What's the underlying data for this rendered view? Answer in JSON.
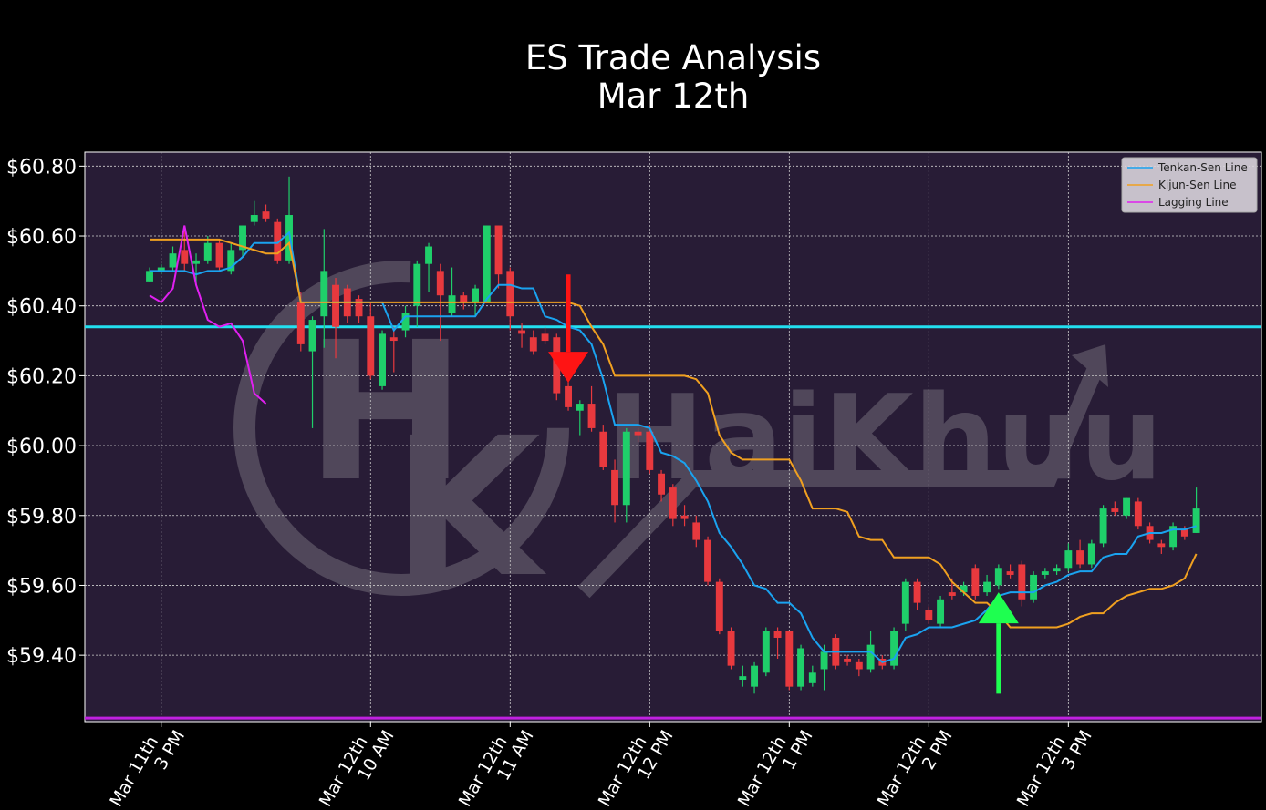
{
  "chart_data": {
    "type": "candlestick",
    "title": "ES Trade Analysis",
    "subtitle": "Mar 12th",
    "x": [
      0,
      1,
      2,
      3,
      4,
      5,
      6,
      7,
      8,
      9,
      10,
      11,
      12,
      13,
      14,
      15,
      16,
      17,
      18,
      19,
      20,
      21,
      22,
      23,
      24,
      25,
      26,
      27,
      28,
      29,
      30,
      31,
      32,
      33,
      34,
      35,
      36,
      37,
      38,
      39,
      40,
      41,
      42,
      43,
      44,
      45,
      46,
      47,
      48,
      49,
      50,
      51,
      52,
      53,
      54,
      55,
      56,
      57,
      58,
      59,
      60,
      61,
      62,
      63,
      64,
      65,
      66,
      67,
      68,
      69,
      70,
      71,
      72,
      73,
      74,
      75,
      76,
      77,
      78,
      79,
      80,
      81,
      82,
      83,
      84,
      85,
      86,
      87,
      88,
      89,
      90
    ],
    "open": [
      60.47,
      60.5,
      60.51,
      60.56,
      60.52,
      60.53,
      60.58,
      60.5,
      60.56,
      60.64,
      60.67,
      60.64,
      60.53,
      60.41,
      60.27,
      60.37,
      60.46,
      60.45,
      60.42,
      60.37,
      60.17,
      60.31,
      60.33,
      60.4,
      60.52,
      60.5,
      60.38,
      60.43,
      60.41,
      60.41,
      60.63,
      60.5,
      60.33,
      60.31,
      60.32,
      60.31,
      60.17,
      60.1,
      60.12,
      60.04,
      59.93,
      59.83,
      60.04,
      60.04,
      59.92,
      59.88,
      59.8,
      59.78,
      59.73,
      59.61,
      59.47,
      59.33,
      59.31,
      59.35,
      59.47,
      59.47,
      59.31,
      59.32,
      59.36,
      59.45,
      59.39,
      59.38,
      59.36,
      59.39,
      59.37,
      59.49,
      59.61,
      59.53,
      59.49,
      59.58,
      59.58,
      59.65,
      59.58,
      59.6,
      59.64,
      59.66,
      59.56,
      59.63,
      59.64,
      59.65,
      59.7,
      59.66,
      59.72,
      59.82,
      59.8,
      59.84,
      59.77,
      59.72,
      59.71,
      59.76,
      59.75
    ],
    "high": [
      60.51,
      60.52,
      60.57,
      60.63,
      60.55,
      60.6,
      60.59,
      60.58,
      60.63,
      60.7,
      60.69,
      60.65,
      60.77,
      60.44,
      60.37,
      60.62,
      60.48,
      60.46,
      60.43,
      60.41,
      60.33,
      60.34,
      60.4,
      60.53,
      60.58,
      60.52,
      60.51,
      60.44,
      60.46,
      60.63,
      60.63,
      60.51,
      60.35,
      60.33,
      60.34,
      60.32,
      60.24,
      60.13,
      60.17,
      60.06,
      59.96,
      60.05,
      60.05,
      60.06,
      59.93,
      59.89,
      59.83,
      59.8,
      59.74,
      59.62,
      59.48,
      59.37,
      59.38,
      59.48,
      59.48,
      59.47,
      59.43,
      59.37,
      59.43,
      59.46,
      59.4,
      59.39,
      59.47,
      59.4,
      59.48,
      59.62,
      59.62,
      59.54,
      59.57,
      59.62,
      59.61,
      59.66,
      59.63,
      59.66,
      59.66,
      59.67,
      59.64,
      59.65,
      59.66,
      59.72,
      59.73,
      59.73,
      59.83,
      59.84,
      59.85,
      59.85,
      59.78,
      59.73,
      59.78,
      59.77,
      59.88
    ],
    "low": [
      60.47,
      60.49,
      60.5,
      60.5,
      60.46,
      60.52,
      60.5,
      60.49,
      60.54,
      60.63,
      60.64,
      60.52,
      60.52,
      60.27,
      60.05,
      60.28,
      60.25,
      60.35,
      60.35,
      60.19,
      60.16,
      60.21,
      60.31,
      60.34,
      60.44,
      60.3,
      60.37,
      60.39,
      60.37,
      60.41,
      60.45,
      60.33,
      60.28,
      60.26,
      60.29,
      60.13,
      60.1,
      60.03,
      60.04,
      59.93,
      59.78,
      59.78,
      60.01,
      59.92,
      59.84,
      59.77,
      59.77,
      59.71,
      59.6,
      59.46,
      59.36,
      59.31,
      59.29,
      59.34,
      59.39,
      59.3,
      59.3,
      59.31,
      59.3,
      59.36,
      59.37,
      59.34,
      59.35,
      59.36,
      59.36,
      59.47,
      59.53,
      59.49,
      59.48,
      59.56,
      59.57,
      59.56,
      59.57,
      59.59,
      59.62,
      59.54,
      59.55,
      59.62,
      59.63,
      59.64,
      59.65,
      59.65,
      59.71,
      59.8,
      59.79,
      59.76,
      59.72,
      59.69,
      59.7,
      59.73,
      59.75
    ],
    "close": [
      60.5,
      60.51,
      60.55,
      60.52,
      60.53,
      60.58,
      60.51,
      60.56,
      60.63,
      60.66,
      60.65,
      60.53,
      60.66,
      60.29,
      60.36,
      60.5,
      60.34,
      60.37,
      60.37,
      60.2,
      60.32,
      60.3,
      60.38,
      60.52,
      60.57,
      60.43,
      60.43,
      60.41,
      60.45,
      60.63,
      60.49,
      60.37,
      60.32,
      60.27,
      60.3,
      60.15,
      60.11,
      60.12,
      60.05,
      59.94,
      59.83,
      60.04,
      60.03,
      59.93,
      59.86,
      59.79,
      59.79,
      59.73,
      59.61,
      59.47,
      59.37,
      59.34,
      59.37,
      59.47,
      59.45,
      59.31,
      59.42,
      59.35,
      59.41,
      59.37,
      59.38,
      59.36,
      59.43,
      59.37,
      59.47,
      59.61,
      59.55,
      59.5,
      59.56,
      59.57,
      59.6,
      59.57,
      59.61,
      59.65,
      59.63,
      59.56,
      59.63,
      59.64,
      59.65,
      59.7,
      59.66,
      59.72,
      59.82,
      59.81,
      59.85,
      59.77,
      59.73,
      59.71,
      59.77,
      59.74,
      59.82
    ],
    "up_color": "#1fcf6a",
    "down_color": "#e8393e",
    "series": [
      {
        "name": "Tenkan-Sen Line",
        "color": "#1aa3f0",
        "values": [
          60.5,
          60.5,
          60.5,
          60.5,
          60.49,
          60.5,
          60.5,
          60.51,
          60.54,
          60.58,
          60.58,
          60.58,
          60.61,
          60.41,
          60.41,
          60.41,
          60.41,
          60.41,
          60.41,
          60.41,
          60.41,
          60.33,
          60.37,
          60.37,
          60.37,
          60.37,
          60.37,
          60.37,
          60.37,
          60.42,
          60.46,
          60.46,
          60.45,
          60.45,
          60.37,
          60.36,
          60.34,
          60.33,
          60.29,
          60.19,
          60.06,
          60.06,
          60.06,
          60.05,
          59.98,
          59.97,
          59.95,
          59.9,
          59.84,
          59.75,
          59.71,
          59.66,
          59.6,
          59.59,
          59.55,
          59.55,
          59.52,
          59.45,
          59.41,
          59.41,
          59.41,
          59.41,
          59.41,
          59.38,
          59.39,
          59.45,
          59.46,
          59.48,
          59.48,
          59.48,
          59.49,
          59.5,
          59.53,
          59.57,
          59.58,
          59.58,
          59.58,
          59.6,
          59.61,
          59.63,
          59.64,
          59.64,
          59.68,
          59.69,
          59.69,
          59.74,
          59.75,
          59.75,
          59.76,
          59.76,
          59.77
        ]
      },
      {
        "name": "Kijun-Sen Line",
        "color": "#f0a020",
        "values": [
          60.59,
          60.59,
          60.59,
          60.59,
          60.59,
          60.59,
          60.59,
          60.58,
          60.57,
          60.56,
          60.55,
          60.55,
          60.58,
          60.41,
          60.41,
          60.41,
          60.41,
          60.41,
          60.41,
          60.41,
          60.41,
          60.41,
          60.41,
          60.41,
          60.41,
          60.41,
          60.41,
          60.41,
          60.41,
          60.41,
          60.41,
          60.41,
          60.41,
          60.41,
          60.41,
          60.41,
          60.41,
          60.4,
          60.34,
          60.29,
          60.2,
          60.2,
          60.2,
          60.2,
          60.2,
          60.2,
          60.2,
          60.19,
          60.15,
          60.03,
          59.98,
          59.96,
          59.96,
          59.96,
          59.96,
          59.96,
          59.9,
          59.82,
          59.82,
          59.82,
          59.81,
          59.74,
          59.73,
          59.73,
          59.68,
          59.68,
          59.68,
          59.68,
          59.66,
          59.61,
          59.58,
          59.55,
          59.55,
          59.52,
          59.48,
          59.48,
          59.48,
          59.48,
          59.48,
          59.49,
          59.51,
          59.52,
          59.52,
          59.55,
          59.57,
          59.58,
          59.59,
          59.59,
          59.6,
          59.62,
          59.69
        ]
      },
      {
        "name": "Lagging Line",
        "color": "#e020f0",
        "values": [
          60.43,
          60.41,
          60.45,
          60.63,
          60.46,
          60.36,
          60.34,
          60.35,
          60.3,
          60.15,
          60.12,
          null,
          null,
          null,
          null,
          null,
          null,
          null,
          null,
          null,
          null,
          null,
          null,
          null,
          null,
          null,
          null,
          null,
          null,
          null,
          null,
          null,
          null,
          null,
          null,
          null,
          null,
          null,
          null,
          null,
          null,
          null,
          null,
          null,
          null,
          null,
          null,
          null,
          null,
          null,
          null,
          null,
          null,
          null,
          null,
          null,
          null,
          null,
          null,
          null,
          null,
          null,
          null,
          null,
          null,
          null,
          null,
          null,
          null,
          null,
          null,
          null,
          null,
          null,
          null,
          null,
          null,
          null,
          null,
          null,
          null,
          null,
          null,
          null,
          null,
          null,
          null,
          null,
          null,
          null,
          null
        ]
      }
    ],
    "hlines": [
      {
        "value": 60.34,
        "color": "#22e0f0"
      },
      {
        "value": 59.22,
        "color": "#c020e0"
      }
    ],
    "arrows": [
      {
        "x": 36,
        "from": 60.49,
        "to": 60.18,
        "color": "#ff1414"
      },
      {
        "x": 73,
        "from": 59.29,
        "to": 59.58,
        "color": "#1eff50"
      }
    ],
    "xlim": [
      -5.57,
      95.6
    ],
    "ylim": [
      59.21,
      60.84
    ],
    "xticks": [
      {
        "value": 1,
        "label": [
          "Mar 11th",
          "3 PM"
        ]
      },
      {
        "value": 19,
        "label": [
          "Mar 12th",
          "10 AM"
        ]
      },
      {
        "value": 31,
        "label": [
          "Mar 12th",
          "11 AM"
        ]
      },
      {
        "value": 43,
        "label": [
          "Mar 12th",
          "12 PM"
        ]
      },
      {
        "value": 55,
        "label": [
          "Mar 12th",
          "1 PM"
        ]
      },
      {
        "value": 67,
        "label": [
          "Mar 12th",
          "2 PM"
        ]
      },
      {
        "value": 79,
        "label": [
          "Mar 12th",
          "3 PM"
        ]
      }
    ],
    "yticks": [
      {
        "value": 59.4,
        "label": "$59.40"
      },
      {
        "value": 59.6,
        "label": "$59.60"
      },
      {
        "value": 59.8,
        "label": "$59.80"
      },
      {
        "value": 60.0,
        "label": "$60.00"
      },
      {
        "value": 60.2,
        "label": "$60.20"
      },
      {
        "value": 60.4,
        "label": "$60.40"
      },
      {
        "value": 60.6,
        "label": "$60.60"
      },
      {
        "value": 60.8,
        "label": "$60.80"
      }
    ],
    "grid": true,
    "legend": "upper right",
    "watermark": "HaiKhuu",
    "watermark_logo": [
      "H",
      "K"
    ]
  }
}
